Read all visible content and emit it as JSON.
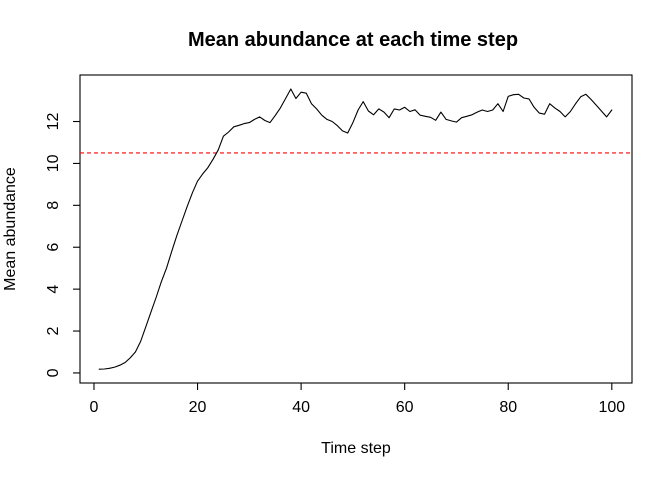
{
  "window": {
    "background": "#FFFFFF"
  },
  "colors": {
    "axis": "#000000",
    "text": "#000000",
    "series_line": "#000000",
    "reference_line": "#FF0000",
    "background": "#FFFFFF"
  },
  "chart_data": {
    "type": "line",
    "title": "Mean abundance at each time step",
    "xlabel": "Time step",
    "ylabel": "Mean abundance",
    "x_ticks": [
      0,
      20,
      40,
      60,
      80,
      100
    ],
    "y_ticks": [
      0,
      2,
      4,
      6,
      8,
      10,
      12
    ],
    "xlim": [
      -2.7,
      103.9
    ],
    "ylim": [
      -0.48,
      14.22
    ],
    "grid": false,
    "legend": "none",
    "ref_line": {
      "y": 10.5,
      "color": "#FF0000",
      "style": "dashed"
    },
    "series": [
      {
        "name": "mean-abundance",
        "color": "#000000",
        "x": [
          1,
          2,
          3,
          4,
          5,
          6,
          7,
          8,
          9,
          10,
          11,
          12,
          13,
          14,
          15,
          16,
          17,
          18,
          19,
          20,
          21,
          22,
          23,
          24,
          25,
          26,
          27,
          28,
          29,
          30,
          31,
          32,
          33,
          34,
          35,
          36,
          37,
          38,
          39,
          40,
          41,
          42,
          43,
          44,
          45,
          46,
          47,
          48,
          49,
          50,
          51,
          52,
          53,
          54,
          55,
          56,
          57,
          58,
          59,
          60,
          61,
          62,
          63,
          64,
          65,
          66,
          67,
          68,
          69,
          70,
          71,
          72,
          73,
          74,
          75,
          76,
          77,
          78,
          79,
          80,
          81,
          82,
          83,
          84,
          85,
          86,
          87,
          88,
          89,
          90,
          91,
          92,
          93,
          94,
          95,
          96,
          97,
          98,
          99,
          100
        ],
        "values": [
          0.18,
          0.19,
          0.22,
          0.28,
          0.37,
          0.5,
          0.72,
          1.0,
          1.5,
          2.2,
          2.9,
          3.6,
          4.35,
          5.0,
          5.8,
          6.55,
          7.25,
          7.95,
          8.6,
          9.15,
          9.5,
          9.8,
          10.2,
          10.65,
          11.3,
          11.5,
          11.75,
          11.82,
          11.9,
          11.95,
          12.1,
          12.22,
          12.05,
          11.95,
          12.28,
          12.65,
          13.1,
          13.55,
          13.1,
          13.4,
          13.35,
          12.85,
          12.6,
          12.3,
          12.1,
          12.0,
          11.8,
          11.55,
          11.45,
          11.95,
          12.55,
          12.95,
          12.5,
          12.32,
          12.6,
          12.45,
          12.18,
          12.6,
          12.55,
          12.68,
          12.48,
          12.56,
          12.3,
          12.25,
          12.2,
          12.06,
          12.45,
          12.1,
          12.03,
          11.97,
          12.18,
          12.25,
          12.32,
          12.45,
          12.55,
          12.48,
          12.55,
          12.85,
          12.48,
          13.2,
          13.28,
          13.3,
          13.12,
          13.08,
          12.68,
          12.4,
          12.35,
          12.85,
          12.65,
          12.48,
          12.22,
          12.48,
          12.85,
          13.18,
          13.3,
          13.05,
          12.78,
          12.5,
          12.22,
          12.55
        ]
      }
    ]
  }
}
